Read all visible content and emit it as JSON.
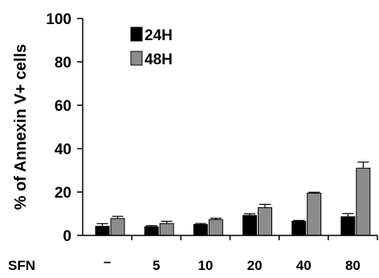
{
  "chart_data": {
    "type": "bar",
    "title": "",
    "xlabel": "",
    "ylabel": "% of Annexin V+ cells",
    "x_prefix_label": "SFN",
    "categories": [
      "-",
      "5",
      "10",
      "20",
      "40",
      "80"
    ],
    "ylim": [
      0,
      100
    ],
    "yticks": [
      "0",
      "20",
      "40",
      "60",
      "80",
      "100"
    ],
    "grid": false,
    "legend_position": "top-left",
    "series": [
      {
        "name": "24H",
        "color": "#000000",
        "values": [
          4.2,
          4.0,
          5.0,
          9.2,
          6.5,
          8.6
        ],
        "errors": [
          1.2,
          0.5,
          0.5,
          0.8,
          0.4,
          1.5
        ]
      },
      {
        "name": "48H",
        "color": "#8c8c8c",
        "values": [
          7.8,
          5.5,
          7.3,
          12.8,
          19.5,
          31.0
        ],
        "errors": [
          1.0,
          1.0,
          0.6,
          1.5,
          0.4,
          2.8
        ]
      }
    ]
  }
}
